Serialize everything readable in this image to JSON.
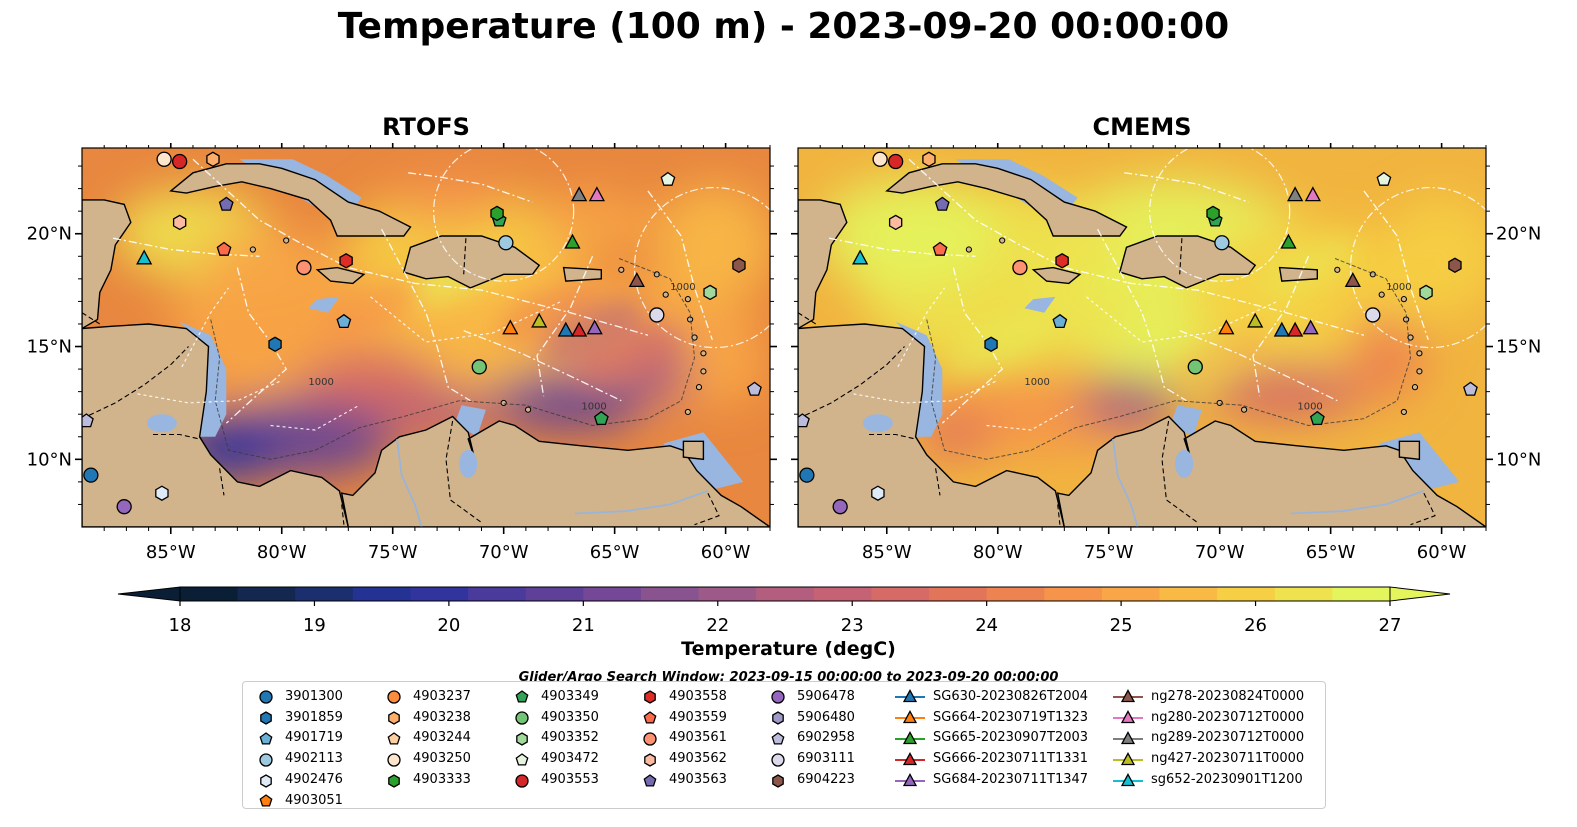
{
  "title": "Temperature (100 m) - 2023-09-20 00:00:00",
  "panels": [
    {
      "title": "RTOFS",
      "variant": "rtofs"
    },
    {
      "title": "CMEMS",
      "variant": "cmems"
    }
  ],
  "axes": {
    "x_ticks": [
      "85°W",
      "80°W",
      "75°W",
      "70°W",
      "65°W",
      "60°W"
    ],
    "y_ticks": [
      "20°N",
      "15°N",
      "10°N"
    ],
    "lon_range": [
      -89,
      -58
    ],
    "lat_range": [
      7,
      23.8
    ]
  },
  "contour_labels": [
    "1000",
    "1000",
    "1000"
  ],
  "colorbar": {
    "label": "Temperature (degC)",
    "ticks": [
      "18",
      "19",
      "20",
      "21",
      "22",
      "23",
      "24",
      "25",
      "26",
      "27"
    ],
    "range": [
      18,
      27
    ],
    "colors": [
      "#0a1f36",
      "#14284f",
      "#1b2f6e",
      "#243294",
      "#32349e",
      "#4a3a9c",
      "#5e4098",
      "#744896",
      "#895390",
      "#9d5a88",
      "#b35e7e",
      "#c56273",
      "#d56a67",
      "#e2745a",
      "#ed8350",
      "#f5944a",
      "#f8a647",
      "#f9ba45",
      "#f6cf44",
      "#eee24e",
      "#e4f45c"
    ],
    "colormap": "thermal"
  },
  "search_window": "Glider/Argo Search Window: 2023-09-15 00:00:00 to 2023-09-20 00:00:00",
  "legend": {
    "columns": [
      [
        {
          "label": "3901300",
          "marker": "circle",
          "color": "#1f77b4"
        },
        {
          "label": "3901859",
          "marker": "hexagon",
          "color": "#1f77b4"
        },
        {
          "label": "4901719",
          "marker": "pentagon",
          "color": "#6baed6"
        },
        {
          "label": "4902113",
          "marker": "circle",
          "color": "#9ecae1"
        },
        {
          "label": "4902476",
          "marker": "hexagon",
          "color": "#deebf7"
        },
        {
          "label": "4903051",
          "marker": "pentagon",
          "color": "#ff7f0e"
        }
      ],
      [
        {
          "label": "4903237",
          "marker": "circle",
          "color": "#fd8d3c"
        },
        {
          "label": "4903238",
          "marker": "hexagon",
          "color": "#fdae6b"
        },
        {
          "label": "4903244",
          "marker": "pentagon",
          "color": "#fdd0a2"
        },
        {
          "label": "4903250",
          "marker": "circle",
          "color": "#fee6ce"
        },
        {
          "label": "4903333",
          "marker": "hexagon",
          "color": "#2ca02c"
        }
      ],
      [
        {
          "label": "4903349",
          "marker": "pentagon",
          "color": "#31a354"
        },
        {
          "label": "4903350",
          "marker": "circle",
          "color": "#74c476"
        },
        {
          "label": "4903352",
          "marker": "hexagon",
          "color": "#a1d99b"
        },
        {
          "label": "4903472",
          "marker": "pentagon",
          "color": "#e5f5e0"
        },
        {
          "label": "4903553",
          "marker": "circle",
          "color": "#d62728"
        }
      ],
      [
        {
          "label": "4903558",
          "marker": "hexagon",
          "color": "#de2d26"
        },
        {
          "label": "4903559",
          "marker": "pentagon",
          "color": "#fb6a4a"
        },
        {
          "label": "4903561",
          "marker": "circle",
          "color": "#fc9272"
        },
        {
          "label": "4903562",
          "marker": "hexagon",
          "color": "#fcbba1"
        },
        {
          "label": "4903563",
          "marker": "pentagon",
          "color": "#756bb1"
        }
      ],
      [
        {
          "label": "5906478",
          "marker": "circle",
          "color": "#9467bd"
        },
        {
          "label": "5906480",
          "marker": "hexagon",
          "color": "#9e9ac8"
        },
        {
          "label": "6902958",
          "marker": "pentagon",
          "color": "#bcbddc"
        },
        {
          "label": "6903111",
          "marker": "circle",
          "color": "#dadaeb"
        },
        {
          "label": "6904223",
          "marker": "hexagon",
          "color": "#8c564b"
        }
      ],
      [
        {
          "label": "SG630-20230826T2004",
          "marker": "triangle",
          "color": "#1f77b4",
          "line": true
        },
        {
          "label": "SG664-20230719T1323",
          "marker": "triangle",
          "color": "#ff7f0e",
          "line": true
        },
        {
          "label": "SG665-20230907T2003",
          "marker": "triangle",
          "color": "#2ca02c",
          "line": true
        },
        {
          "label": "SG666-20230711T1331",
          "marker": "triangle",
          "color": "#d62728",
          "line": true
        },
        {
          "label": "SG684-20230711T1347",
          "marker": "triangle",
          "color": "#9467bd",
          "line": true
        }
      ],
      [
        {
          "label": "ng278-20230824T0000",
          "marker": "triangle",
          "color": "#8c564b",
          "line": true
        },
        {
          "label": "ng280-20230712T0000",
          "marker": "triangle",
          "color": "#e377c2",
          "line": true
        },
        {
          "label": "ng289-20230712T0000",
          "marker": "triangle",
          "color": "#7f7f7f",
          "line": true
        },
        {
          "label": "ng427-20230711T0000",
          "marker": "triangle",
          "color": "#bcbd22",
          "line": true
        },
        {
          "label": "sg652-20230901T1200",
          "marker": "triangle",
          "color": "#17becf",
          "line": true
        }
      ]
    ]
  },
  "markers": [
    {
      "lon": -85.3,
      "lat": 23.3,
      "shape": "circle",
      "color": "#fee6ce"
    },
    {
      "lon": -84.6,
      "lat": 23.2,
      "shape": "circle",
      "color": "#d62728"
    },
    {
      "lon": -83.1,
      "lat": 23.3,
      "shape": "hexagon",
      "color": "#fdae6b"
    },
    {
      "lon": -62.6,
      "lat": 22.4,
      "shape": "pentagon",
      "color": "#e5f5e0"
    },
    {
      "lon": -84.6,
      "lat": 20.5,
      "shape": "hexagon",
      "color": "#fcbba1"
    },
    {
      "lon": -82.6,
      "lat": 19.3,
      "shape": "pentagon",
      "color": "#fb6a4a"
    },
    {
      "lon": -82.5,
      "lat": 21.3,
      "shape": "pentagon",
      "color": "#756bb1"
    },
    {
      "lon": -79.0,
      "lat": 18.5,
      "shape": "circle",
      "color": "#fc9272"
    },
    {
      "lon": -77.1,
      "lat": 18.8,
      "shape": "hexagon",
      "color": "#de2d26"
    },
    {
      "lon": -77.2,
      "lat": 16.1,
      "shape": "pentagon",
      "color": "#6baed6"
    },
    {
      "lon": -80.3,
      "lat": 15.1,
      "shape": "hexagon",
      "color": "#1f77b4"
    },
    {
      "lon": -70.2,
      "lat": 20.6,
      "shape": "pentagon",
      "color": "#31a354"
    },
    {
      "lon": -70.3,
      "lat": 20.9,
      "shape": "hexagon",
      "color": "#2ca02c"
    },
    {
      "lon": -69.9,
      "lat": 19.6,
      "shape": "circle",
      "color": "#9ecae1"
    },
    {
      "lon": -71.1,
      "lat": 14.1,
      "shape": "circle",
      "color": "#74c476"
    },
    {
      "lon": -63.1,
      "lat": 16.4,
      "shape": "circle",
      "color": "#dadaeb"
    },
    {
      "lon": -60.7,
      "lat": 17.4,
      "shape": "hexagon",
      "color": "#a1d99b"
    },
    {
      "lon": -59.4,
      "lat": 18.6,
      "shape": "hexagon",
      "color": "#8c564b"
    },
    {
      "lon": -65.6,
      "lat": 11.8,
      "shape": "pentagon",
      "color": "#31a354"
    },
    {
      "lon": -58.7,
      "lat": 13.1,
      "shape": "pentagon",
      "color": "#bcbddc"
    },
    {
      "lon": -88.8,
      "lat": 11.7,
      "shape": "pentagon",
      "color": "#bcbddc"
    },
    {
      "lon": -88.6,
      "lat": 9.3,
      "shape": "circle",
      "color": "#1f77b4"
    },
    {
      "lon": -87.1,
      "lat": 7.9,
      "shape": "circle",
      "color": "#9467bd"
    },
    {
      "lon": -85.4,
      "lat": 8.5,
      "shape": "hexagon",
      "color": "#deebf7"
    },
    {
      "lon": -86.2,
      "lat": 18.9,
      "shape": "triangle",
      "color": "#17becf"
    },
    {
      "lon": -66.9,
      "lat": 19.6,
      "shape": "triangle",
      "color": "#2ca02c"
    },
    {
      "lon": -66.6,
      "lat": 21.7,
      "shape": "triangle",
      "color": "#7f7f7f"
    },
    {
      "lon": -65.8,
      "lat": 21.7,
      "shape": "triangle",
      "color": "#e377c2"
    },
    {
      "lon": -64.0,
      "lat": 17.9,
      "shape": "triangle",
      "color": "#8c564b"
    },
    {
      "lon": -69.7,
      "lat": 15.8,
      "shape": "triangle",
      "color": "#ff7f0e"
    },
    {
      "lon": -68.4,
      "lat": 16.1,
      "shape": "triangle",
      "color": "#bcbd22"
    },
    {
      "lon": -67.2,
      "lat": 15.7,
      "shape": "triangle",
      "color": "#1f77b4"
    },
    {
      "lon": -66.6,
      "lat": 15.7,
      "shape": "triangle",
      "color": "#d62728"
    },
    {
      "lon": -65.9,
      "lat": 15.8,
      "shape": "triangle",
      "color": "#9467bd"
    }
  ]
}
